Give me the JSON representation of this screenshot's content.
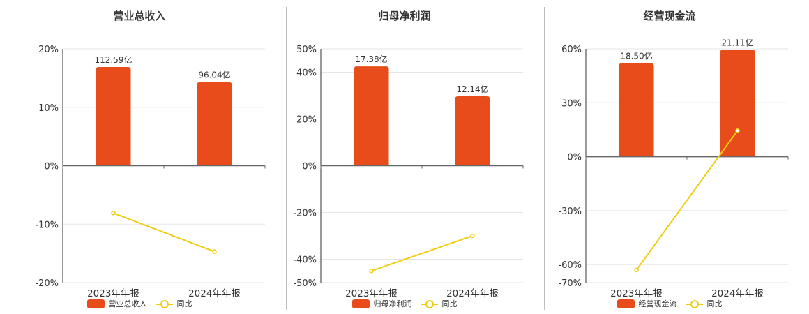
{
  "colors": {
    "bar": "#e84c1b",
    "line": "#f0cd14",
    "axis": "#333333",
    "grid": "#e6e6e6"
  },
  "legend": {
    "yoy": "同比"
  },
  "chart_data": [
    {
      "type": "bar",
      "title": "营业总收入",
      "categories": [
        "2023年年报",
        "2024年年报"
      ],
      "series": [
        {
          "name": "营业总收入",
          "type": "bar",
          "values": [
            16.9,
            14.3
          ],
          "labels": [
            "112.59亿",
            "96.04亿"
          ]
        },
        {
          "name": "同比",
          "type": "line",
          "values": [
            -8.1,
            -14.7
          ]
        }
      ],
      "ylim": [
        -20,
        20
      ],
      "yticks": [
        -20,
        -10,
        0,
        10,
        20
      ],
      "ytick_labels": [
        "-20%",
        "-10%",
        "0%",
        "10%",
        "20%"
      ],
      "grid": true
    },
    {
      "type": "bar",
      "title": "归母净利润",
      "categories": [
        "2023年年报",
        "2024年年报"
      ],
      "series": [
        {
          "name": "归母净利润",
          "type": "bar",
          "values": [
            42.5,
            29.7
          ],
          "labels": [
            "17.38亿",
            "12.14亿"
          ]
        },
        {
          "name": "同比",
          "type": "line",
          "values": [
            -45.0,
            -30.0
          ]
        }
      ],
      "ylim": [
        -50,
        50
      ],
      "yticks": [
        -50,
        -40,
        -20,
        0,
        20,
        40,
        50
      ],
      "ytick_labels": [
        "-50%",
        "-40%",
        "-20%",
        "0%",
        "20%",
        "40%",
        "50%"
      ],
      "grid": true
    },
    {
      "type": "bar",
      "title": "经营现金流",
      "categories": [
        "2023年年报",
        "2024年年报"
      ],
      "series": [
        {
          "name": "经营现金流",
          "type": "bar",
          "values": [
            52.0,
            59.5
          ],
          "labels": [
            "18.50亿",
            "21.11亿"
          ]
        },
        {
          "name": "同比",
          "type": "line",
          "values": [
            -63.0,
            14.5
          ]
        }
      ],
      "ylim": [
        -70,
        60
      ],
      "yticks": [
        -70,
        -60,
        -30,
        0,
        30,
        60
      ],
      "ytick_labels": [
        "-70%",
        "-60%",
        "-30%",
        "0%",
        "30%",
        "60%"
      ],
      "grid": true
    }
  ]
}
